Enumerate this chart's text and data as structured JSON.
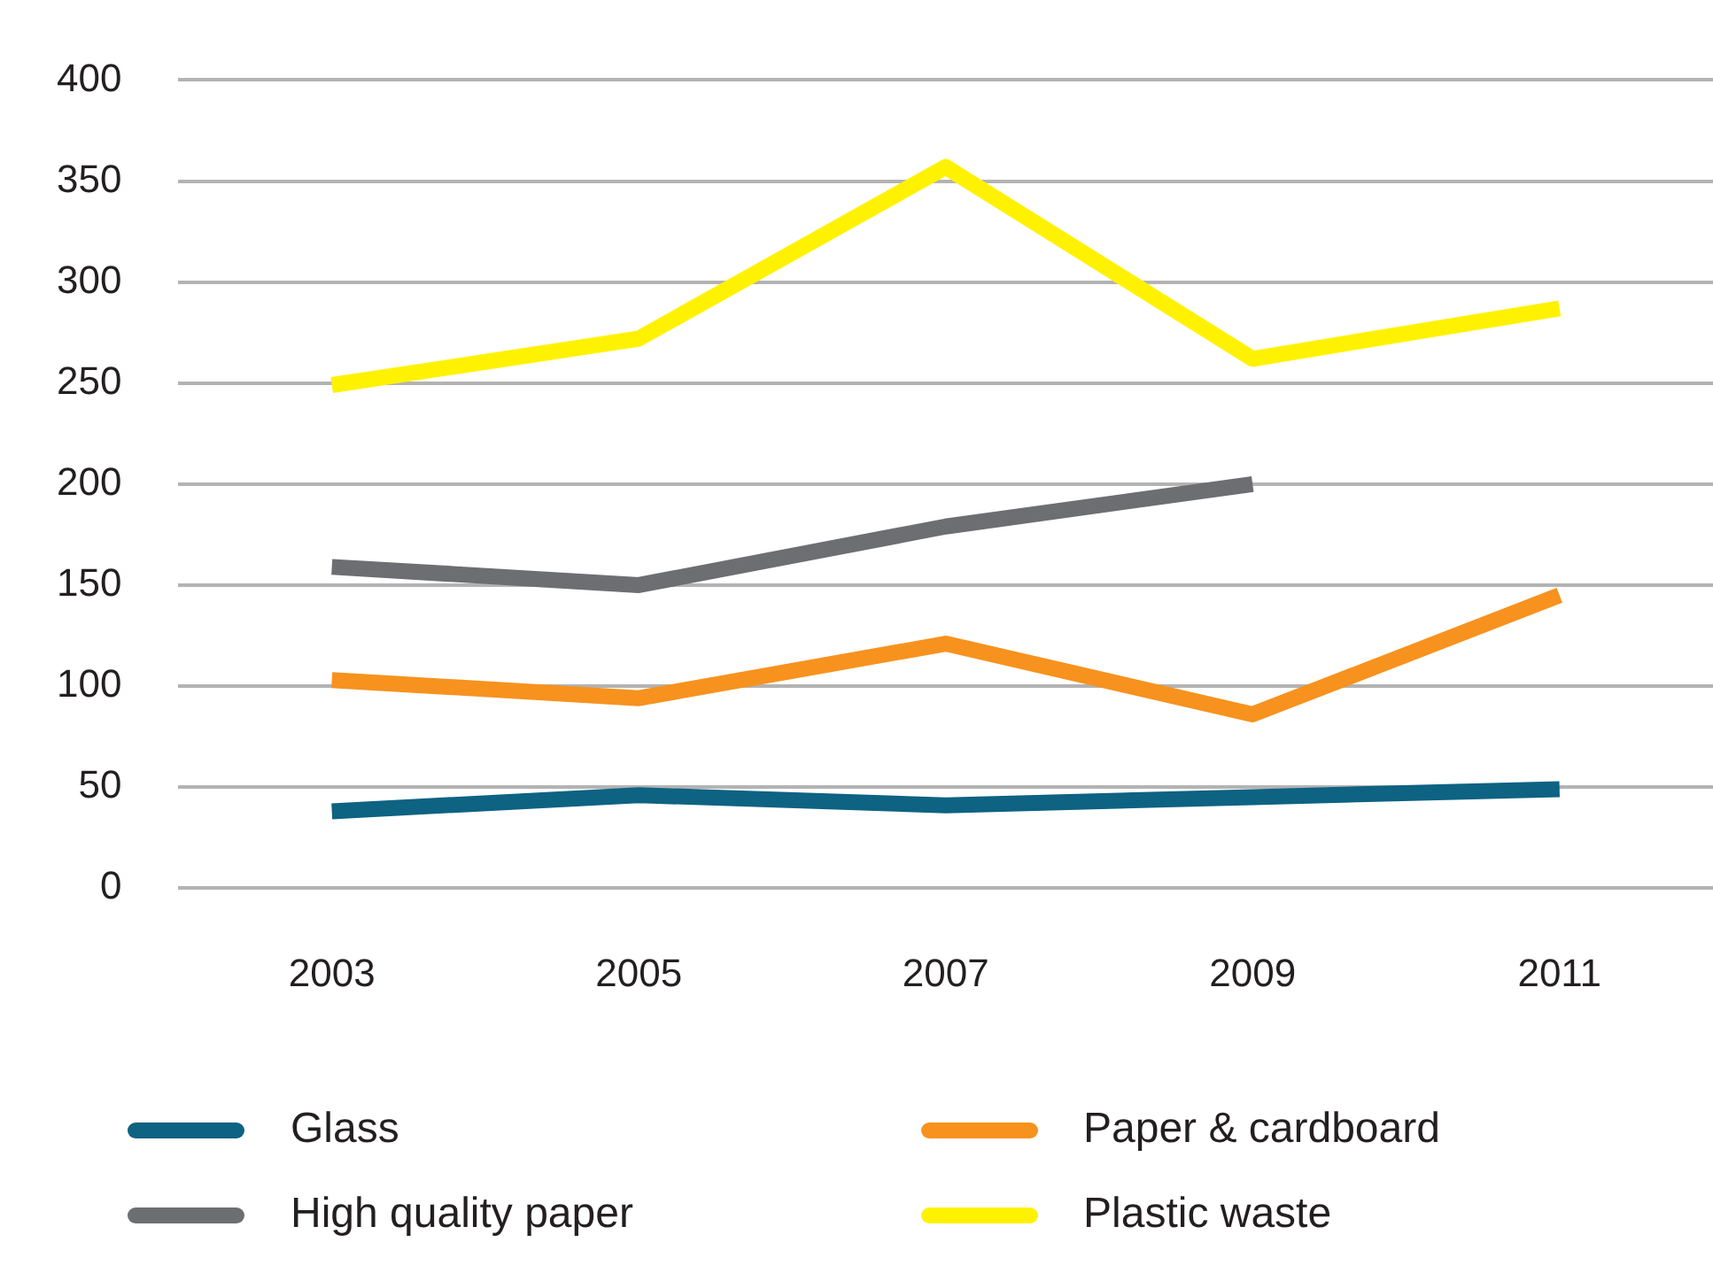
{
  "chart_data": {
    "type": "line",
    "categories": [
      "2003",
      "2005",
      "2007",
      "2009",
      "2011"
    ],
    "series": [
      {
        "name": "Glass",
        "color": "#0e6282",
        "values": [
          38,
          46,
          41,
          45,
          49
        ]
      },
      {
        "name": "Paper & cardboard",
        "color": "#f7921e",
        "values": [
          103,
          94,
          121,
          86,
          145
        ]
      },
      {
        "name": "High quality paper",
        "color": "#6d6e71",
        "values": [
          159,
          150,
          179,
          200,
          null
        ]
      },
      {
        "name": "Plastic waste",
        "color": "#fff200",
        "values": [
          249,
          272,
          357,
          262,
          287
        ]
      }
    ],
    "ylim": [
      0,
      400
    ],
    "yticks": [
      0,
      50,
      100,
      150,
      200,
      250,
      300,
      350,
      400
    ],
    "grid": "y",
    "legend": "bottom",
    "marker": "none",
    "line_style": "solid"
  }
}
